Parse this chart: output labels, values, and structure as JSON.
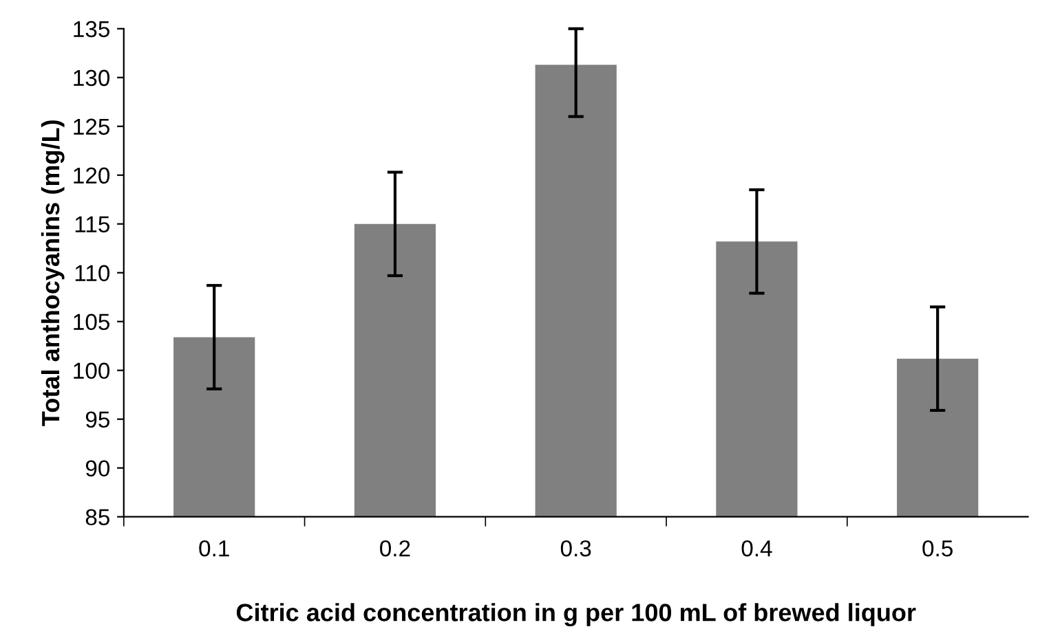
{
  "chart_data": {
    "type": "bar",
    "xlabel": "Citric acid concentration in g per 100 mL of brewed liquor",
    "ylabel": "Total anthocyanins (mg/L)",
    "categories": [
      "0.1",
      "0.2",
      "0.3",
      "0.4",
      "0.5"
    ],
    "values": [
      103.4,
      115.0,
      131.3,
      113.2,
      101.2
    ],
    "errors": [
      5.3,
      5.3,
      [
        126.0,
        135
      ],
      5.3,
      5.3
    ],
    "color": "#808080",
    "ylim": [
      85,
      135
    ],
    "yticks": [
      85,
      90,
      95,
      100,
      105,
      110,
      115,
      120,
      125,
      130,
      135
    ],
    "grid": false,
    "legend": false
  }
}
